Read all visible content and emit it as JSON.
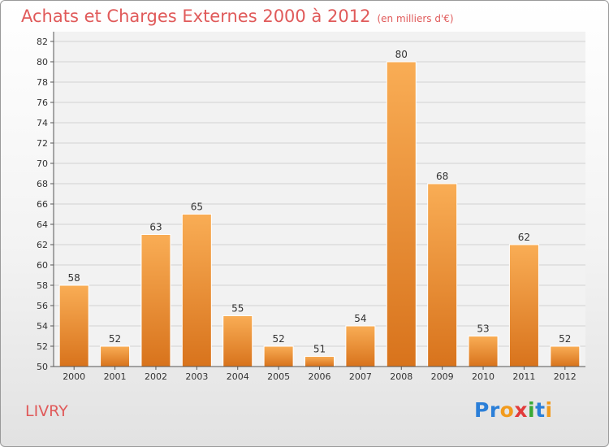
{
  "title": "Achats et Charges Externes 2000 à 2012",
  "unit_note": "(en milliers d'€)",
  "commune": "LIVRY",
  "logo": {
    "parts": [
      "Pr",
      "o",
      "x",
      "i",
      "t",
      "i"
    ]
  },
  "colors": {
    "bar_light": "#f7a94f",
    "bar_dark": "#d8721c",
    "title": "#e05a5a",
    "grid": "#d0d0d0"
  },
  "chart_data": {
    "type": "bar",
    "categories": [
      "2000",
      "2001",
      "2002",
      "2003",
      "2004",
      "2005",
      "2006",
      "2007",
      "2008",
      "2009",
      "2010",
      "2011",
      "2012"
    ],
    "values": [
      58,
      52,
      63,
      65,
      55,
      52,
      51,
      54,
      80,
      68,
      53,
      62,
      52
    ],
    "title": "Achats et Charges Externes 2000 à 2012",
    "ylim": [
      50,
      82
    ],
    "yticks": [
      50,
      52,
      54,
      56,
      58,
      60,
      62,
      64,
      66,
      68,
      70,
      72,
      74,
      76,
      78,
      80,
      82
    ],
    "grid": true
  }
}
